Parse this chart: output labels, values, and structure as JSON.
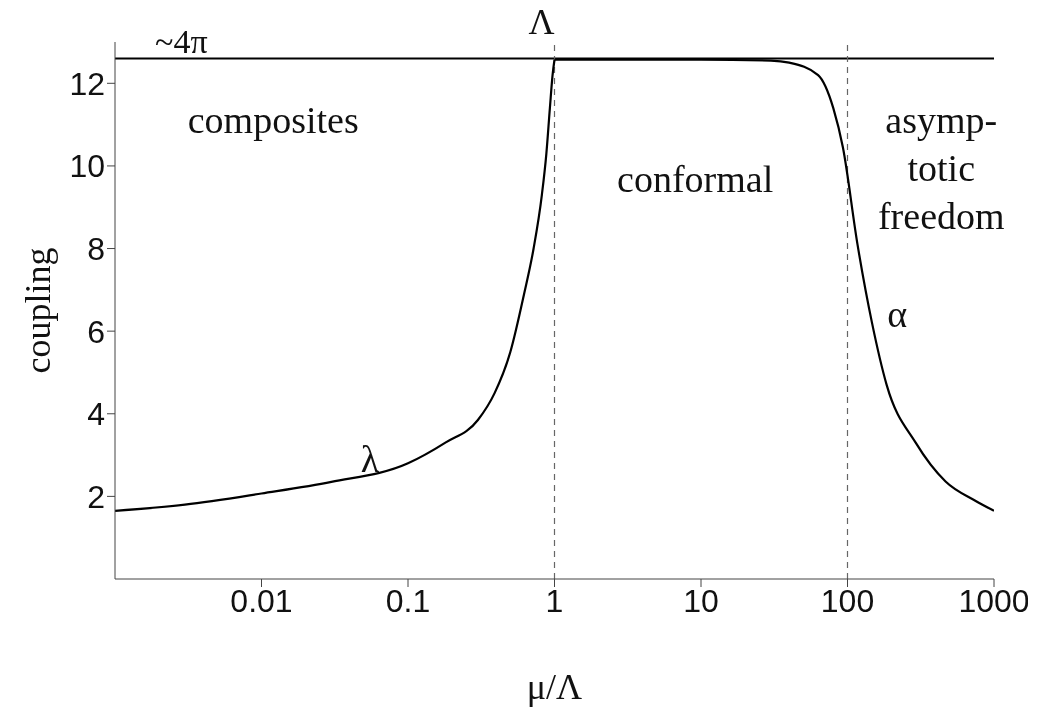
{
  "chart_data": {
    "type": "line",
    "xlabel": "μ/Λ",
    "ylabel": "coupling",
    "log": "x",
    "xlim": [
      0.001,
      1000
    ],
    "xticks": [
      0.01,
      0.1,
      1,
      10,
      100,
      1000
    ],
    "ylim": [
      0,
      13
    ],
    "yticks": [
      2,
      4,
      6,
      8,
      10,
      12
    ],
    "line_style": "solid",
    "series": [
      {
        "color": "#000000",
        "x": [
          0.001,
          0.003,
          0.01,
          0.03,
          0.1,
          0.18,
          0.3,
          0.39,
          0.5,
          0.62,
          0.72,
          0.82,
          0.88,
          0.93,
          0.97,
          1
        ],
        "values": [
          1.65,
          1.8,
          2.07,
          2.35,
          2.8,
          3.3,
          3.85,
          4.5,
          5.5,
          6.9,
          8.0,
          9.3,
          10.3,
          11.4,
          12.2,
          12.57
        ]
      },
      {
        "color": "#000000",
        "x": [
          1,
          10,
          30,
          40,
          63,
          80,
          93,
          117,
          147,
          185,
          292,
          467,
          740,
          1000
        ],
        "values": [
          12.57,
          12.57,
          12.55,
          12.5,
          12.2,
          11.4,
          10.45,
          8.1,
          6.2,
          4.7,
          3.3,
          2.36,
          1.9,
          1.65
        ]
      }
    ],
    "ref_lines": [
      {
        "axis": "y",
        "value": 12.6,
        "label": "~4π",
        "color": "#000000",
        "line_style": "solid"
      },
      {
        "axis": "x",
        "value": 1,
        "label": "Λ",
        "color": "#666666",
        "line_style": "dashed"
      },
      {
        "axis": "x",
        "value": 100,
        "color": "#666666",
        "line_style": "dashed"
      }
    ],
    "annotations": [
      "composites",
      "conformal",
      "asymp-\ntotic\nfreedom",
      "λ",
      "α"
    ]
  }
}
